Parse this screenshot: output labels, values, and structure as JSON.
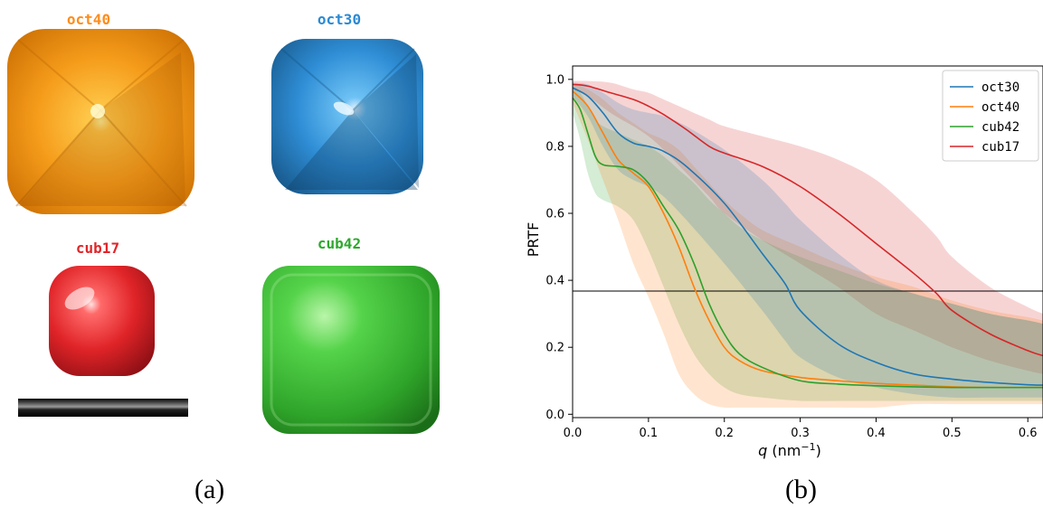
{
  "panel_a": {
    "caption": "(a)",
    "particles": [
      {
        "name": "oct40",
        "color": "#ff8c1a"
      },
      {
        "name": "oct30",
        "color": "#2a8ad4"
      },
      {
        "name": "cub17",
        "color": "#e0262a"
      },
      {
        "name": "cub42",
        "color": "#2ea82e"
      }
    ]
  },
  "panel_b": {
    "caption": "(b)"
  },
  "chart_data": {
    "type": "line",
    "xlabel_var": "q",
    "xlabel_unit": " (nm",
    "xlabel_exp": "−1",
    "xlabel_close": ")",
    "ylabel": "PRTF",
    "xlim": [
      0.0,
      0.62
    ],
    "ylim": [
      -0.01,
      1.04
    ],
    "xticks": [
      0.0,
      0.1,
      0.2,
      0.3,
      0.4,
      0.5,
      0.6
    ],
    "yticks": [
      0.0,
      0.2,
      0.4,
      0.6,
      0.8,
      1.0
    ],
    "threshold": 0.368,
    "legend_position": "top-right",
    "grid": false,
    "series": [
      {
        "name": "oct30",
        "color": "#1f77b4",
        "x": [
          0.0,
          0.02,
          0.04,
          0.06,
          0.08,
          0.1,
          0.12,
          0.15,
          0.2,
          0.25,
          0.28,
          0.3,
          0.35,
          0.4,
          0.45,
          0.5,
          0.55,
          0.6,
          0.62
        ],
        "y": [
          0.975,
          0.95,
          0.9,
          0.84,
          0.81,
          0.8,
          0.785,
          0.74,
          0.63,
          0.48,
          0.39,
          0.31,
          0.21,
          0.155,
          0.12,
          0.105,
          0.095,
          0.088,
          0.087
        ],
        "lo": [
          0.95,
          0.89,
          0.8,
          0.73,
          0.7,
          0.68,
          0.65,
          0.58,
          0.45,
          0.31,
          0.22,
          0.17,
          0.11,
          0.08,
          0.06,
          0.05,
          0.05,
          0.05,
          0.05
        ],
        "hi": [
          0.99,
          0.985,
          0.96,
          0.93,
          0.91,
          0.9,
          0.89,
          0.86,
          0.79,
          0.7,
          0.63,
          0.58,
          0.48,
          0.4,
          0.36,
          0.33,
          0.3,
          0.28,
          0.27
        ]
      },
      {
        "name": "oct40",
        "color": "#ff7f0e",
        "x": [
          0.0,
          0.02,
          0.04,
          0.06,
          0.08,
          0.1,
          0.12,
          0.14,
          0.16,
          0.18,
          0.2,
          0.22,
          0.25,
          0.3,
          0.35,
          0.4,
          0.45,
          0.5,
          0.55,
          0.6,
          0.62
        ],
        "y": [
          0.965,
          0.92,
          0.84,
          0.76,
          0.72,
          0.68,
          0.6,
          0.5,
          0.38,
          0.28,
          0.2,
          0.16,
          0.13,
          0.11,
          0.1,
          0.092,
          0.087,
          0.082,
          0.08,
          0.08,
          0.08
        ],
        "lo": [
          0.93,
          0.82,
          0.7,
          0.58,
          0.45,
          0.35,
          0.24,
          0.12,
          0.06,
          0.03,
          0.02,
          0.02,
          0.02,
          0.02,
          0.02,
          0.02,
          0.03,
          0.03,
          0.03,
          0.03,
          0.03
        ],
        "hi": [
          0.99,
          0.97,
          0.94,
          0.9,
          0.87,
          0.84,
          0.82,
          0.79,
          0.74,
          0.69,
          0.64,
          0.6,
          0.55,
          0.5,
          0.45,
          0.41,
          0.38,
          0.34,
          0.31,
          0.29,
          0.28
        ]
      },
      {
        "name": "cub42",
        "color": "#2ca02c",
        "x": [
          0.0,
          0.01,
          0.02,
          0.03,
          0.04,
          0.06,
          0.08,
          0.1,
          0.12,
          0.14,
          0.16,
          0.18,
          0.2,
          0.22,
          0.25,
          0.3,
          0.35,
          0.4,
          0.45,
          0.5,
          0.55,
          0.6,
          0.62
        ],
        "y": [
          0.945,
          0.91,
          0.84,
          0.77,
          0.745,
          0.74,
          0.73,
          0.69,
          0.62,
          0.55,
          0.45,
          0.33,
          0.24,
          0.18,
          0.14,
          0.1,
          0.09,
          0.085,
          0.082,
          0.08,
          0.08,
          0.08,
          0.08
        ],
        "lo": [
          0.9,
          0.82,
          0.72,
          0.66,
          0.64,
          0.62,
          0.58,
          0.49,
          0.38,
          0.27,
          0.18,
          0.12,
          0.08,
          0.06,
          0.05,
          0.04,
          0.04,
          0.04,
          0.04,
          0.04,
          0.04,
          0.04,
          0.04
        ],
        "hi": [
          0.98,
          0.96,
          0.92,
          0.88,
          0.86,
          0.84,
          0.82,
          0.8,
          0.77,
          0.73,
          0.69,
          0.64,
          0.6,
          0.56,
          0.52,
          0.47,
          0.43,
          0.39,
          0.36,
          0.33,
          0.3,
          0.28,
          0.27
        ]
      },
      {
        "name": "cub17",
        "color": "#d62728",
        "x": [
          0.0,
          0.02,
          0.05,
          0.08,
          0.1,
          0.12,
          0.15,
          0.18,
          0.2,
          0.25,
          0.3,
          0.35,
          0.4,
          0.45,
          0.48,
          0.5,
          0.55,
          0.6,
          0.62
        ],
        "y": [
          0.985,
          0.98,
          0.96,
          0.94,
          0.92,
          0.895,
          0.85,
          0.8,
          0.78,
          0.74,
          0.68,
          0.6,
          0.51,
          0.42,
          0.36,
          0.31,
          0.24,
          0.19,
          0.175
        ],
        "lo": [
          0.97,
          0.95,
          0.9,
          0.86,
          0.83,
          0.79,
          0.72,
          0.65,
          0.6,
          0.52,
          0.45,
          0.38,
          0.3,
          0.25,
          0.22,
          0.2,
          0.16,
          0.13,
          0.12
        ],
        "hi": [
          0.995,
          0.995,
          0.99,
          0.97,
          0.96,
          0.94,
          0.91,
          0.88,
          0.86,
          0.83,
          0.8,
          0.76,
          0.7,
          0.6,
          0.53,
          0.47,
          0.38,
          0.32,
          0.3
        ]
      }
    ]
  }
}
